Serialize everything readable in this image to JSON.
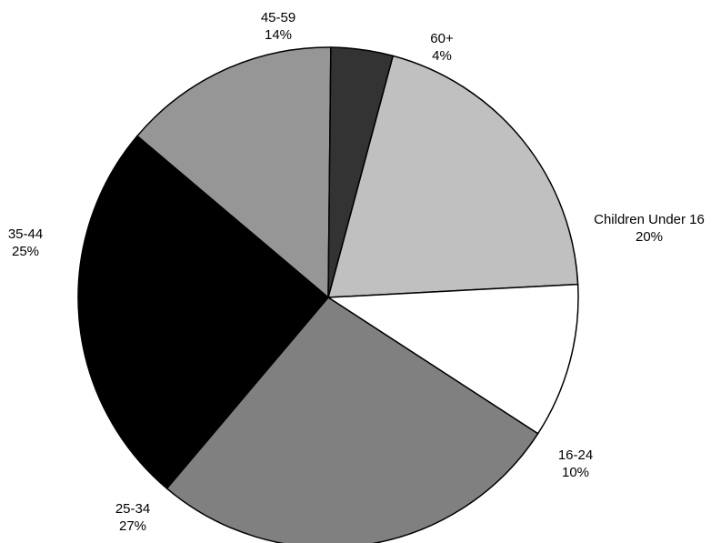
{
  "chart_data": {
    "type": "pie",
    "title": "",
    "categories": [
      "Children Under 16",
      "16-24",
      "25-34",
      "35-44",
      "45-59",
      "60+"
    ],
    "values": [
      20,
      10,
      27,
      25,
      14,
      4
    ],
    "value_labels": [
      "20%",
      "10%",
      "27%",
      "25%",
      "14%",
      "4%"
    ],
    "colors": [
      "#c0c0c0",
      "#ffffff",
      "#808080",
      "#000000",
      "#969696",
      "#333333"
    ],
    "start_angle_deg": 75,
    "direction": "clockwise",
    "legend": "none"
  }
}
